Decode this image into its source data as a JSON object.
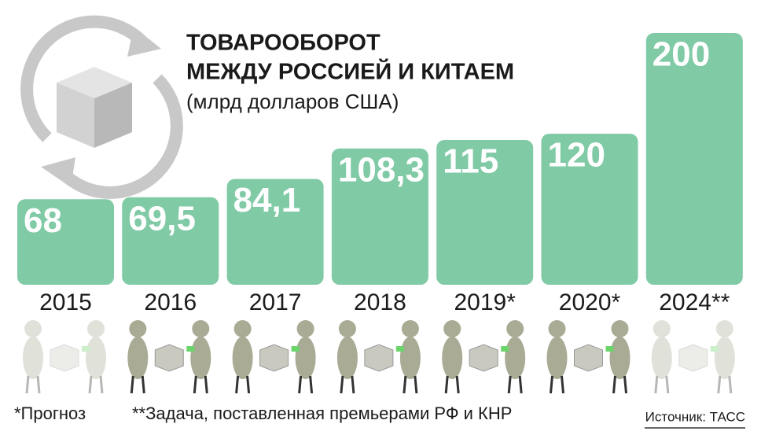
{
  "chart_data": {
    "type": "bar",
    "title_lines": [
      "ТОВАРООБОРОТ",
      "МЕЖДУ РОССИЕЙ И КИТАЕМ"
    ],
    "subtitle": "(млрд долларов США)",
    "categories": [
      "2015",
      "2016",
      "2017",
      "2018",
      "2019*",
      "2020*",
      "2024**"
    ],
    "values": [
      68,
      69.5,
      84.1,
      108.3,
      115,
      120,
      200
    ],
    "value_labels": [
      "68",
      "69,5",
      "84,1",
      "108,3",
      "115",
      "120",
      "200"
    ],
    "color": "#80caa6",
    "footnotes": [
      "*Прогноз",
      "**Задача, поставленная премьерами РФ и КНР"
    ],
    "source": "Источник: ТАСС"
  }
}
